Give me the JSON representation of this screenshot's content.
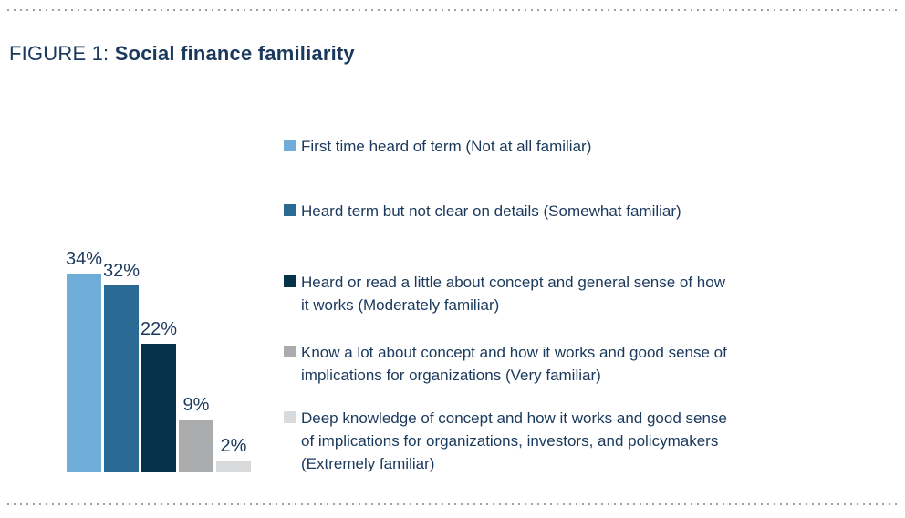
{
  "figure": {
    "label_prefix": "FIGURE 1:",
    "title": "Social finance familiarity"
  },
  "chart_data": {
    "type": "bar",
    "title": "FIGURE 1: Social finance familiarity",
    "unit": "%",
    "ylim": [
      0,
      36
    ],
    "grid": false,
    "axes_shown": false,
    "value_labels_shown": true,
    "legend_position": "right",
    "categories": [
      "Not at all familiar",
      "Somewhat familiar",
      "Moderately familiar",
      "Very familiar",
      "Extremely familiar"
    ],
    "values": [
      34,
      32,
      22,
      9,
      2
    ],
    "series": [
      {
        "category": "Not at all familiar",
        "value": 34,
        "value_label": "34%",
        "color": "#6fadd8",
        "legend": "First time heard of term (Not at all familiar)",
        "legend_lines": [
          "First time heard of term (Not at all familiar)"
        ]
      },
      {
        "category": "Somewhat familiar",
        "value": 32,
        "value_label": "32%",
        "color": "#2a6a95",
        "legend": "Heard term but not clear on details (Somewhat familiar)",
        "legend_lines": [
          "Heard term but not clear on details (Somewhat familiar)"
        ]
      },
      {
        "category": "Moderately familiar",
        "value": 22,
        "value_label": "22%",
        "color": "#063349",
        "legend": "Heard or read a little about concept and general sense of how it works (Moderately familiar)",
        "legend_lines": [
          "Heard or read a little about concept and general sense of how",
          "it works (Moderately familiar)"
        ]
      },
      {
        "category": "Very familiar",
        "value": 9,
        "value_label": "9%",
        "color": "#aaabad",
        "legend": "Know a lot about concept and how it works and good sense of implications for organizations (Very familiar)",
        "legend_lines": [
          "Know a lot about concept and how it works and good sense of",
          "implications for organizations (Very familiar)"
        ]
      },
      {
        "category": "Extremely familiar",
        "value": 2,
        "value_label": "2%",
        "color": "#d9dadb",
        "legend": "Deep knowledge of concept and how it works and good sense of implications for organizations, investors, and policymakers (Extremely familiar)",
        "legend_lines": [
          "Deep knowledge of concept and how it works and good sense",
          "of implications for organizations, investors, and policymakers",
          "(Extremely familiar)"
        ]
      }
    ]
  },
  "colors": {
    "text": "#1a395c",
    "divider_dots": "#9aa0a8"
  }
}
